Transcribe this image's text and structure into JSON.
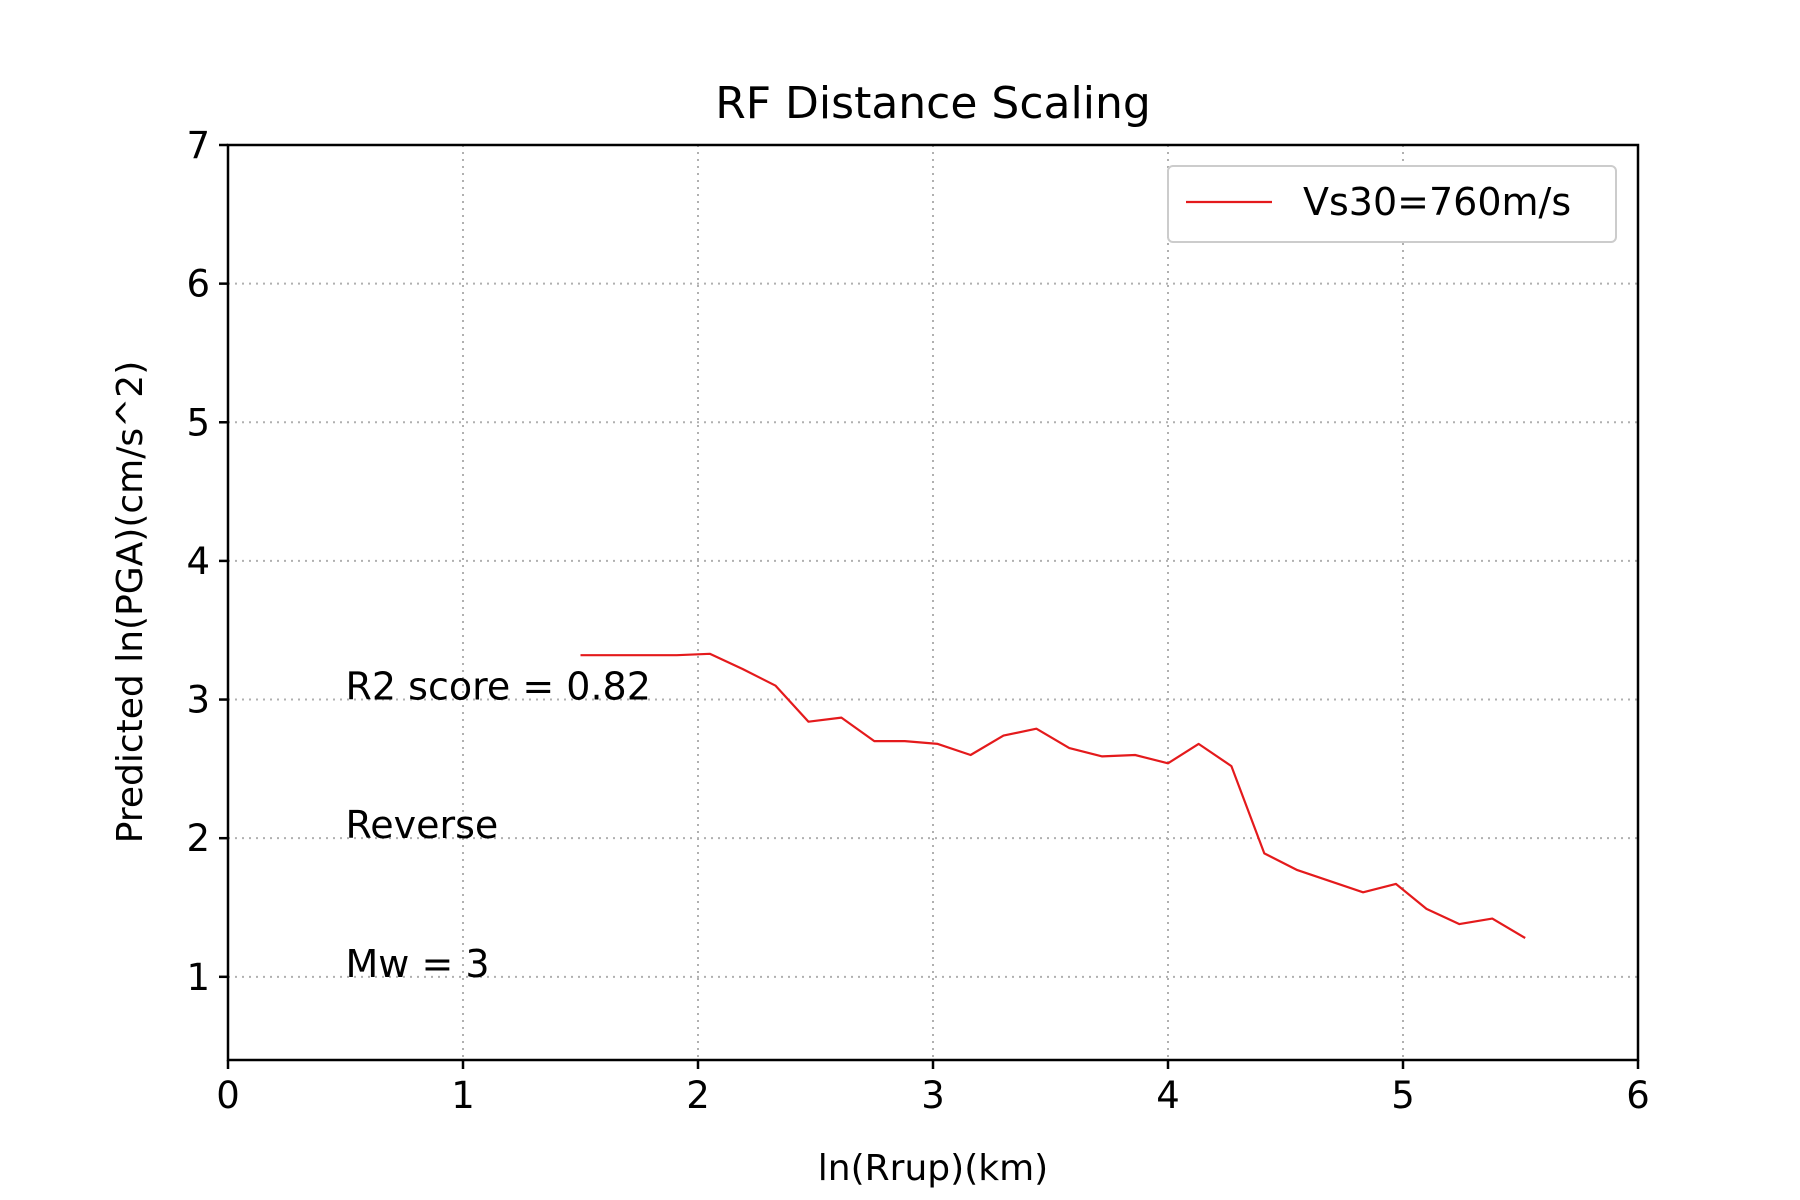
{
  "chart_data": {
    "type": "line",
    "title": "RF Distance Scaling",
    "xlabel": "ln(Rrup)(km)",
    "ylabel": "Predicted ln(PGA)(cm/s^2)",
    "xlim": [
      0,
      6
    ],
    "ylim": [
      0.4,
      7
    ],
    "xticks": [
      0,
      1,
      2,
      3,
      4,
      5,
      6
    ],
    "yticks": [
      1,
      2,
      3,
      4,
      5,
      6,
      7
    ],
    "grid": true,
    "legend_position": "top-right",
    "series": [
      {
        "name": "Vs30=760m/s",
        "color": "#e41a1c",
        "x": [
          1.5,
          1.63,
          1.77,
          1.91,
          2.05,
          2.19,
          2.33,
          2.47,
          2.61,
          2.75,
          2.88,
          3.02,
          3.16,
          3.3,
          3.44,
          3.58,
          3.72,
          3.86,
          4.0,
          4.13,
          4.27,
          4.41,
          4.55,
          4.69,
          4.83,
          4.97,
          5.1,
          5.24,
          5.38,
          5.52
        ],
        "y": [
          3.32,
          3.32,
          3.32,
          3.32,
          3.33,
          3.22,
          3.1,
          2.84,
          2.87,
          2.7,
          2.7,
          2.68,
          2.6,
          2.74,
          2.79,
          2.65,
          2.59,
          2.6,
          2.54,
          2.68,
          2.52,
          1.89,
          1.77,
          1.69,
          1.61,
          1.67,
          1.49,
          1.38,
          1.42,
          1.28
        ]
      }
    ],
    "annotations": [
      {
        "text": "R2 score = 0.82",
        "x": 0.5,
        "y": 3.0
      },
      {
        "text": "Reverse",
        "x": 0.5,
        "y": 2.0
      },
      {
        "text": "Mw = 3",
        "x": 0.5,
        "y": 1.0
      }
    ]
  }
}
